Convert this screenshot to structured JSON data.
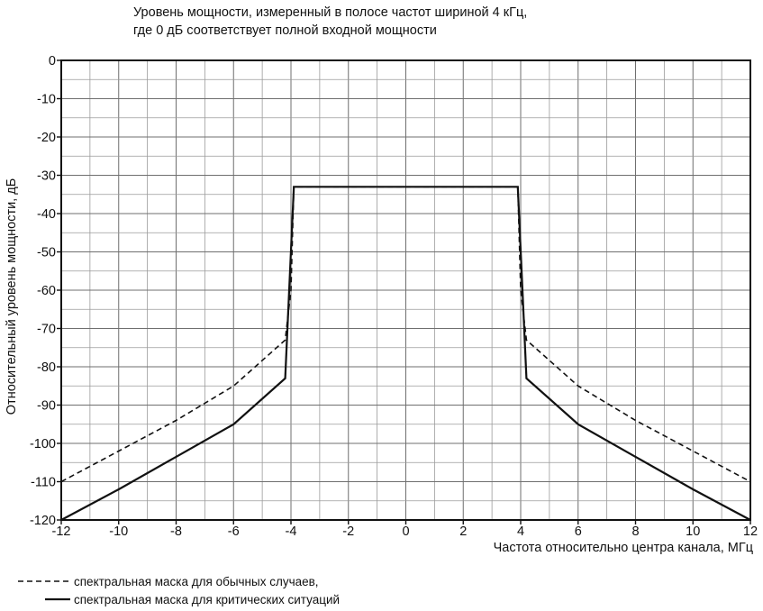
{
  "chart_data": {
    "type": "line",
    "title_lines": [
      "Уровень мощности, измеренный в полосе частот шириной 4 кГц,",
      "где 0 дБ соответствует полной входной мощности"
    ],
    "xlabel": "Частота относительно центра канала, МГц",
    "ylabel": "Относительный уровень мощности, дБ",
    "xlim": [
      -12,
      12
    ],
    "ylim": [
      -120,
      0
    ],
    "x_ticks": [
      -12,
      -10,
      -8,
      -6,
      -4,
      -2,
      0,
      2,
      4,
      6,
      8,
      10,
      12
    ],
    "y_ticks": [
      0,
      -10,
      -20,
      -30,
      -40,
      -50,
      -60,
      -70,
      -80,
      -90,
      -100,
      -110,
      -120
    ],
    "grid": true,
    "series": [
      {
        "name": "спектральная маска для обычных случаев,",
        "style": "dashed",
        "x": [
          -12,
          -10,
          -8,
          -6,
          -4.2,
          -4,
          -3.9,
          3.9,
          4,
          4.2,
          6,
          8,
          10,
          12
        ],
        "y": [
          -110,
          -102,
          -94,
          -85,
          -73,
          -60,
          -33,
          -33,
          -60,
          -73,
          -85,
          -94,
          -102,
          -110
        ]
      },
      {
        "name": "спектральная маска для критических ситуаций",
        "style": "solid",
        "x": [
          -12,
          -10,
          -8,
          -6,
          -4.2,
          -3.9,
          3.9,
          4.2,
          6,
          8,
          10,
          12
        ],
        "y": [
          -120,
          -112,
          -103.5,
          -95,
          -83,
          -33,
          -33,
          -83,
          -95,
          -103.5,
          -112,
          -120
        ]
      }
    ]
  }
}
